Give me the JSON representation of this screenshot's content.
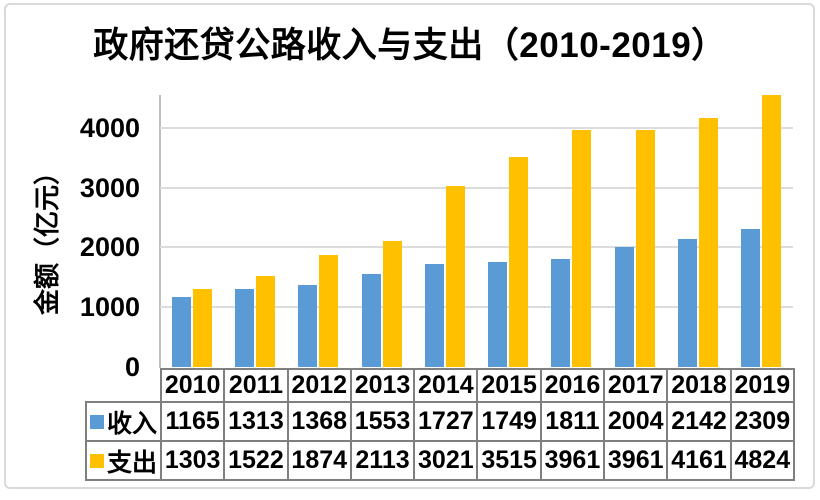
{
  "chart_data": {
    "type": "bar",
    "title": "政府还贷公路收入与支出（2010-2019）",
    "ylabel": "金额（亿元）",
    "categories": [
      "2010",
      "2011",
      "2012",
      "2013",
      "2014",
      "2015",
      "2016",
      "2017",
      "2018",
      "2019"
    ],
    "series": [
      {
        "name": "收入",
        "color": "#5B9BD5",
        "values": [
          1165,
          1313,
          1368,
          1553,
          1727,
          1749,
          1811,
          2004,
          2142,
          2309
        ]
      },
      {
        "name": "支出",
        "color": "#FFC000",
        "values": [
          1303,
          1522,
          1874,
          2113,
          3021,
          3515,
          3961,
          3961,
          4161,
          4824
        ]
      }
    ],
    "yticks": [
      0,
      1000,
      2000,
      3000,
      4000
    ],
    "ylim": [
      0,
      4550
    ],
    "grid": true,
    "legend_position": "table-left"
  },
  "colors": {
    "income": "#5B9BD5",
    "expense": "#FFC000",
    "gridline": "#DCDCDC",
    "axis_line": "#BFBFBF",
    "table_border": "#7F7F7F",
    "frame_border": "#D9D9D9",
    "text": "#000000",
    "background": "#FFFFFF"
  }
}
